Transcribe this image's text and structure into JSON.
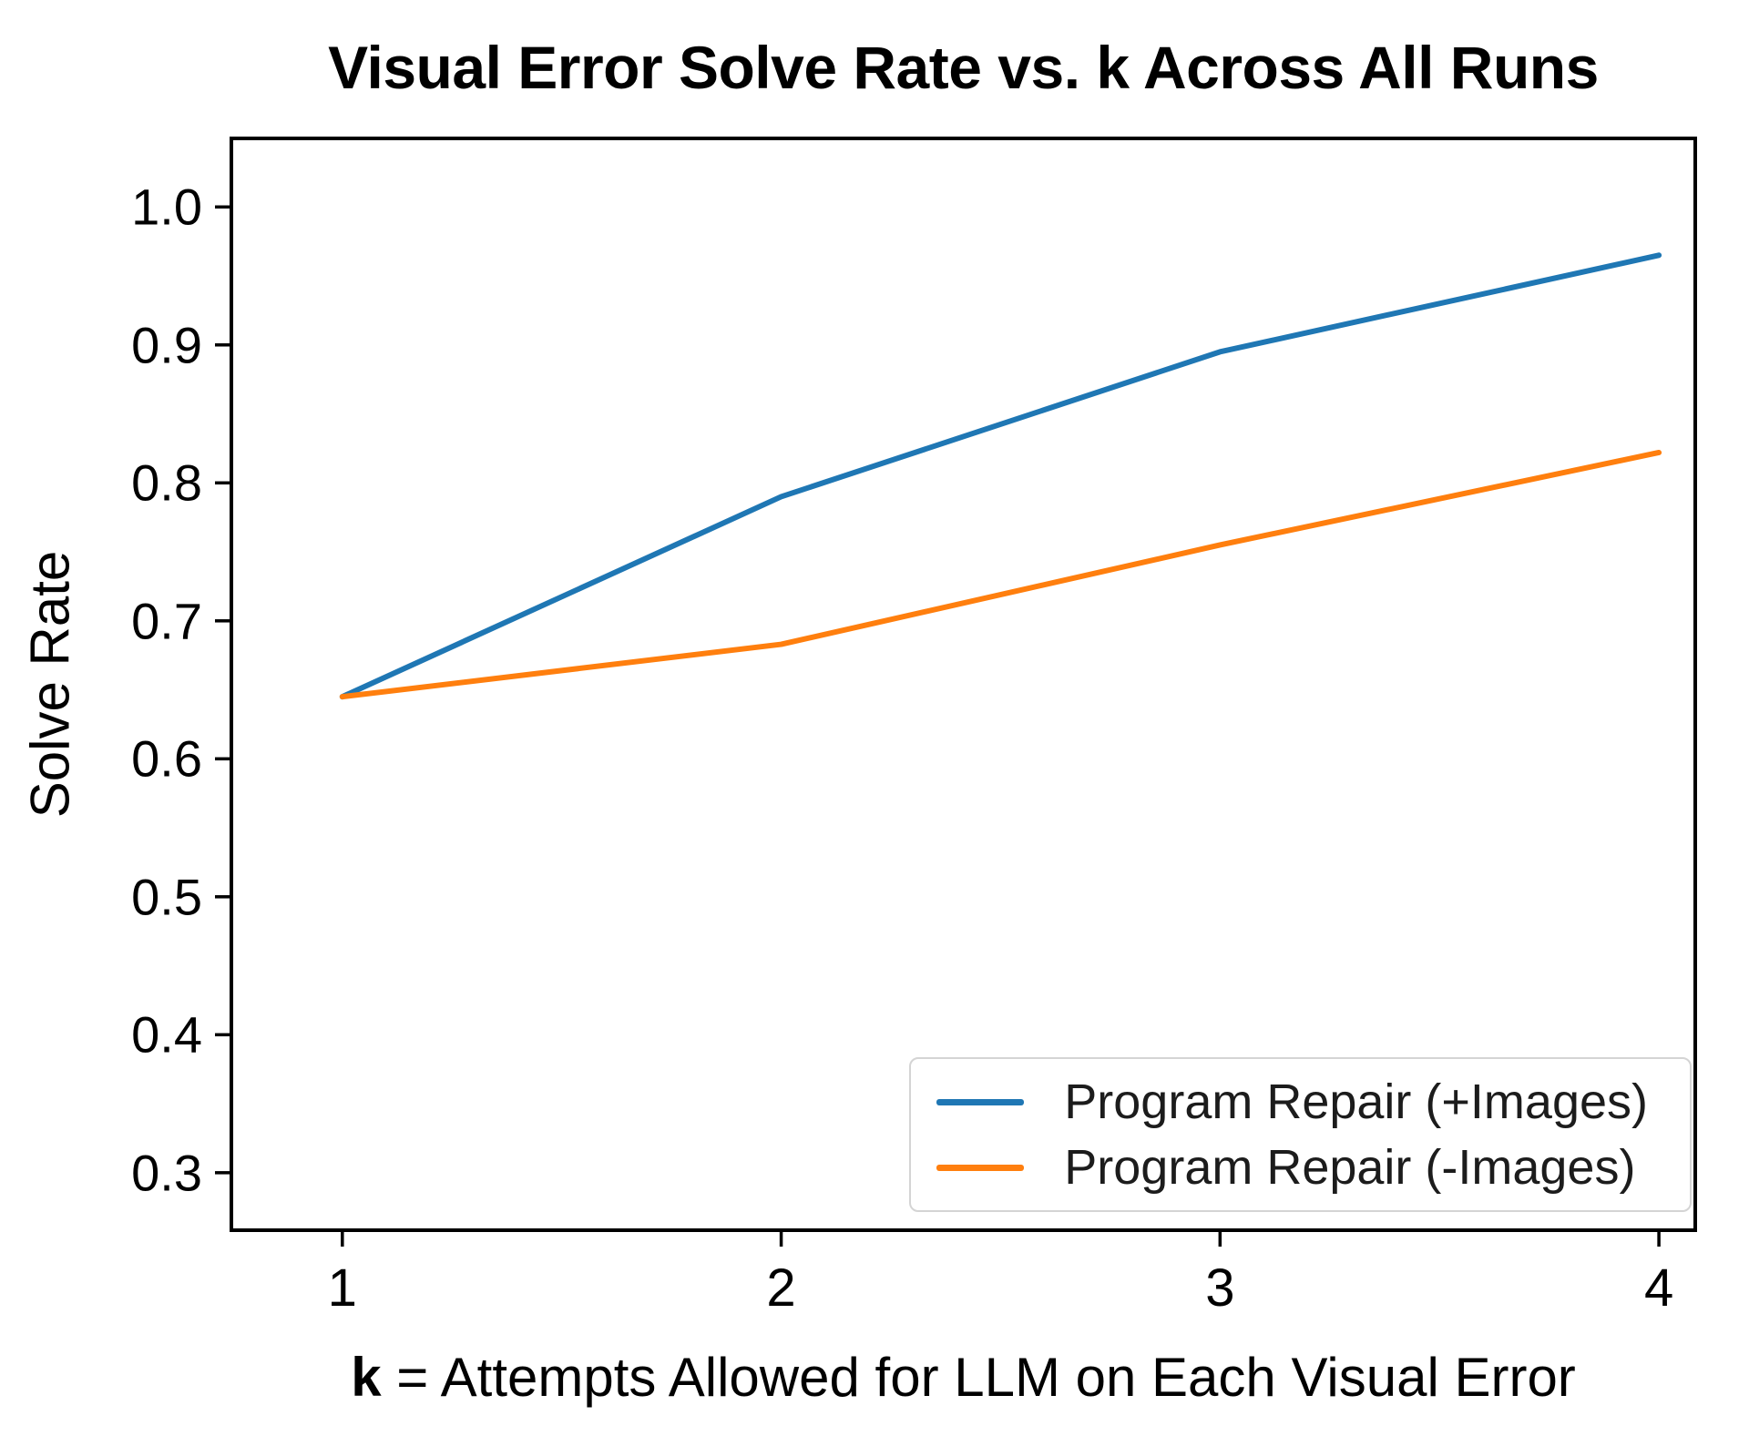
{
  "figure": {
    "background": "#ffffff",
    "text_color": "#000000"
  },
  "chart_data": {
    "type": "line",
    "title": "Visual Error Solve Rate vs. k Across All Runs",
    "xlabel_bold_prefix": "k",
    "xlabel_rest": " = Attempts Allowed for LLM on Each Visual Error",
    "xlabel_full": "k = Attempts Allowed for LLM on Each Visual Error",
    "ylabel": "Solve Rate",
    "x": [
      1,
      2,
      3,
      4
    ],
    "series": [
      {
        "name": "Program Repair (+Images)",
        "color": "#1f77b4",
        "values": [
          0.645,
          0.79,
          0.895,
          0.965
        ]
      },
      {
        "name": "Program Repair (-Images)",
        "color": "#ff7f0e",
        "values": [
          0.645,
          0.683,
          0.755,
          0.822
        ]
      }
    ],
    "xtick_values": [
      1,
      2,
      3,
      4
    ],
    "xtick_labels": [
      "1",
      "2",
      "3",
      "4"
    ],
    "ytick_values": [
      0.3,
      0.4,
      0.5,
      0.6,
      0.7,
      0.8,
      0.9,
      1.0
    ],
    "ytick_labels": [
      "0.3",
      "0.4",
      "0.5",
      "0.6",
      "0.7",
      "0.8",
      "0.9",
      "1.0"
    ],
    "xlim": [
      0.743,
      4.087
    ],
    "ylim": [
      0.257,
      1.051
    ],
    "grid": false,
    "legend_position": "lower-right",
    "axis_color": "#000000",
    "line_width": 6
  }
}
